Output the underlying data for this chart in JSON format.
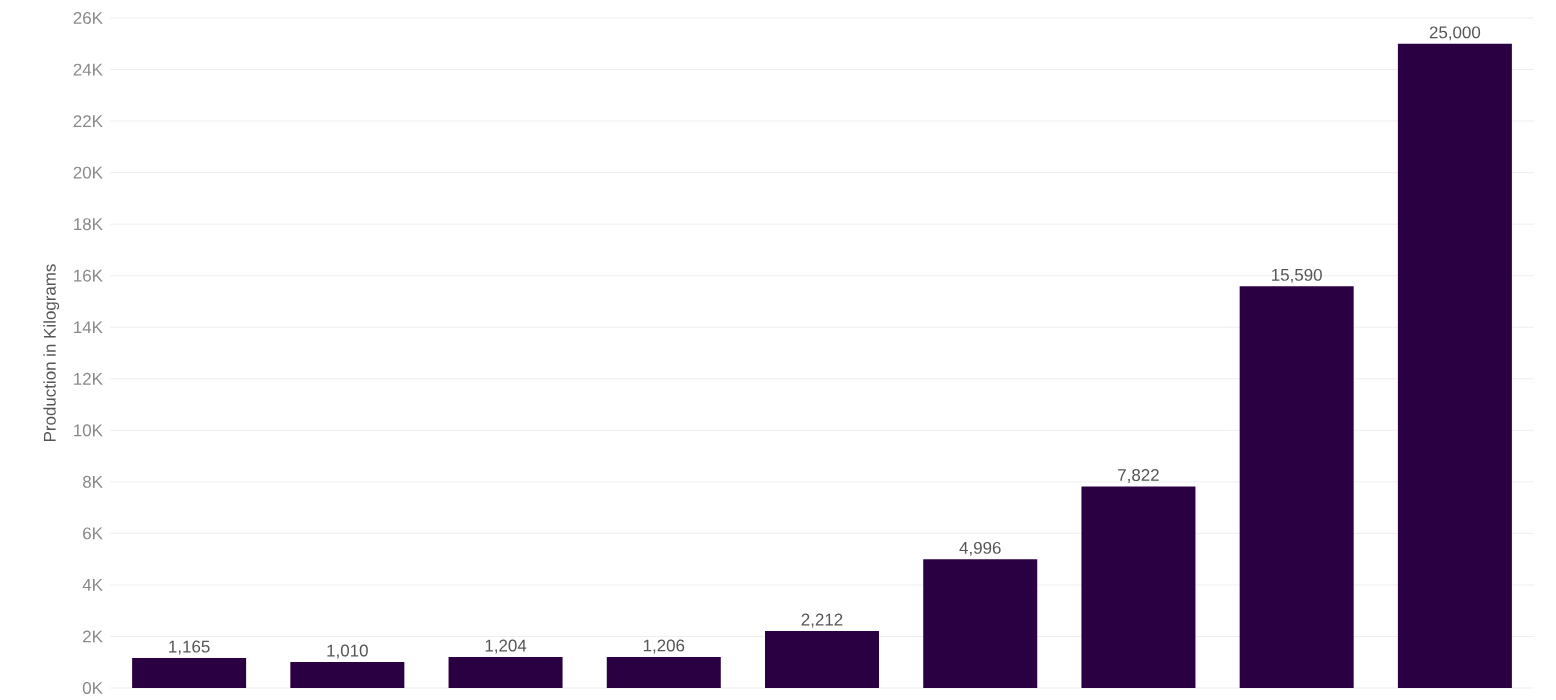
{
  "chart_data": {
    "type": "bar",
    "ylabel": "Production in Kilograms",
    "categories": [
      null,
      null,
      null,
      null,
      null,
      null,
      null,
      null,
      null
    ],
    "values": [
      1165,
      1010,
      1204,
      1206,
      2212,
      4996,
      7822,
      15590,
      25000
    ],
    "value_labels": [
      "1,165",
      "1,010",
      "1,204",
      "1,206",
      "2,212",
      "4,996",
      "7,822",
      "15,590",
      "25,000"
    ],
    "color": "#2a0042",
    "grid": "y",
    "tick_labels": "y",
    "ylim": [
      0,
      26000
    ],
    "yticks": [
      {
        "value": 0,
        "label": "0K"
      },
      {
        "value": 2000,
        "label": "2K"
      },
      {
        "value": 4000,
        "label": "4K"
      },
      {
        "value": 6000,
        "label": "6K"
      },
      {
        "value": 8000,
        "label": "8K"
      },
      {
        "value": 10000,
        "label": "10K"
      },
      {
        "value": 12000,
        "label": "12K"
      },
      {
        "value": 14000,
        "label": "14K"
      },
      {
        "value": 16000,
        "label": "16K"
      },
      {
        "value": 18000,
        "label": "18K"
      },
      {
        "value": 20000,
        "label": "20K"
      },
      {
        "value": 22000,
        "label": "22K"
      },
      {
        "value": 24000,
        "label": "24K"
      },
      {
        "value": 26000,
        "label": "26K"
      }
    ]
  }
}
